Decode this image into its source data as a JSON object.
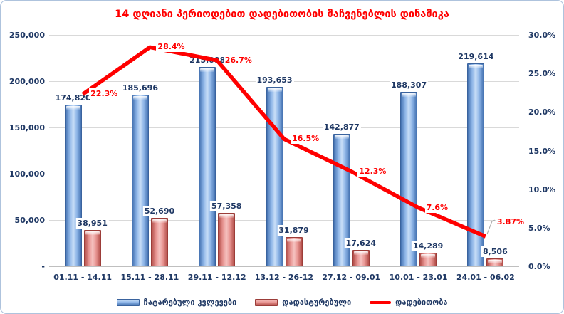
{
  "chart_data": {
    "type": "combo",
    "title": "14 დღიანი პერიოდებით დადებითობის მაჩვენებლის დინამიკა",
    "categories": [
      "01.11 - 14.11",
      "15.11 - 28.11",
      "29.11 - 12.12",
      "13.12 - 26-12",
      "27.12 - 09.01",
      "10.01 - 23.01",
      "24.01 - 06.02"
    ],
    "series": [
      {
        "name": "ჩატარებული კვლევები",
        "type": "bar",
        "axis": "left",
        "values": [
          174820,
          185696,
          215098,
          193653,
          142877,
          188307,
          219614
        ],
        "labels": [
          "174,820",
          "185,696",
          "215,098",
          "193,653",
          "142,877",
          "188,307",
          "219,614"
        ]
      },
      {
        "name": "დადასტურებული",
        "type": "bar",
        "axis": "left",
        "values": [
          38951,
          52690,
          57358,
          31879,
          17624,
          14289,
          8506
        ],
        "labels": [
          "38,951",
          "52,690",
          "57,358",
          "31,879",
          "17,624",
          "14,289",
          "8,506"
        ]
      },
      {
        "name": "დადებითობა",
        "type": "line",
        "axis": "right",
        "values": [
          22.3,
          28.4,
          26.7,
          16.5,
          12.3,
          7.6,
          3.87
        ],
        "labels": [
          "22.3%",
          "28.4%",
          "26.7%",
          "16.5%",
          "12.3%",
          "7.6%",
          "3.87%"
        ]
      }
    ],
    "left_axis": {
      "min": 0,
      "max": 250000,
      "ticks": [
        "250,000",
        "200,000",
        "150,000",
        "100,000",
        "50,000",
        "-"
      ]
    },
    "right_axis": {
      "min": 0,
      "max": 30,
      "ticks": [
        "30.0%",
        "25.0%",
        "20.0%",
        "15.0%",
        "10.0%",
        "5.0%",
        "0.0%"
      ]
    },
    "grid": true,
    "legend_position": "bottom",
    "colors": {
      "title": "#FF0000",
      "axis_text": "#1F3864",
      "bar_tests": "#4F81BD",
      "bar_confirmed": "#C0504D",
      "line": "#FF0000",
      "gridline": "#D9D9D9"
    }
  }
}
